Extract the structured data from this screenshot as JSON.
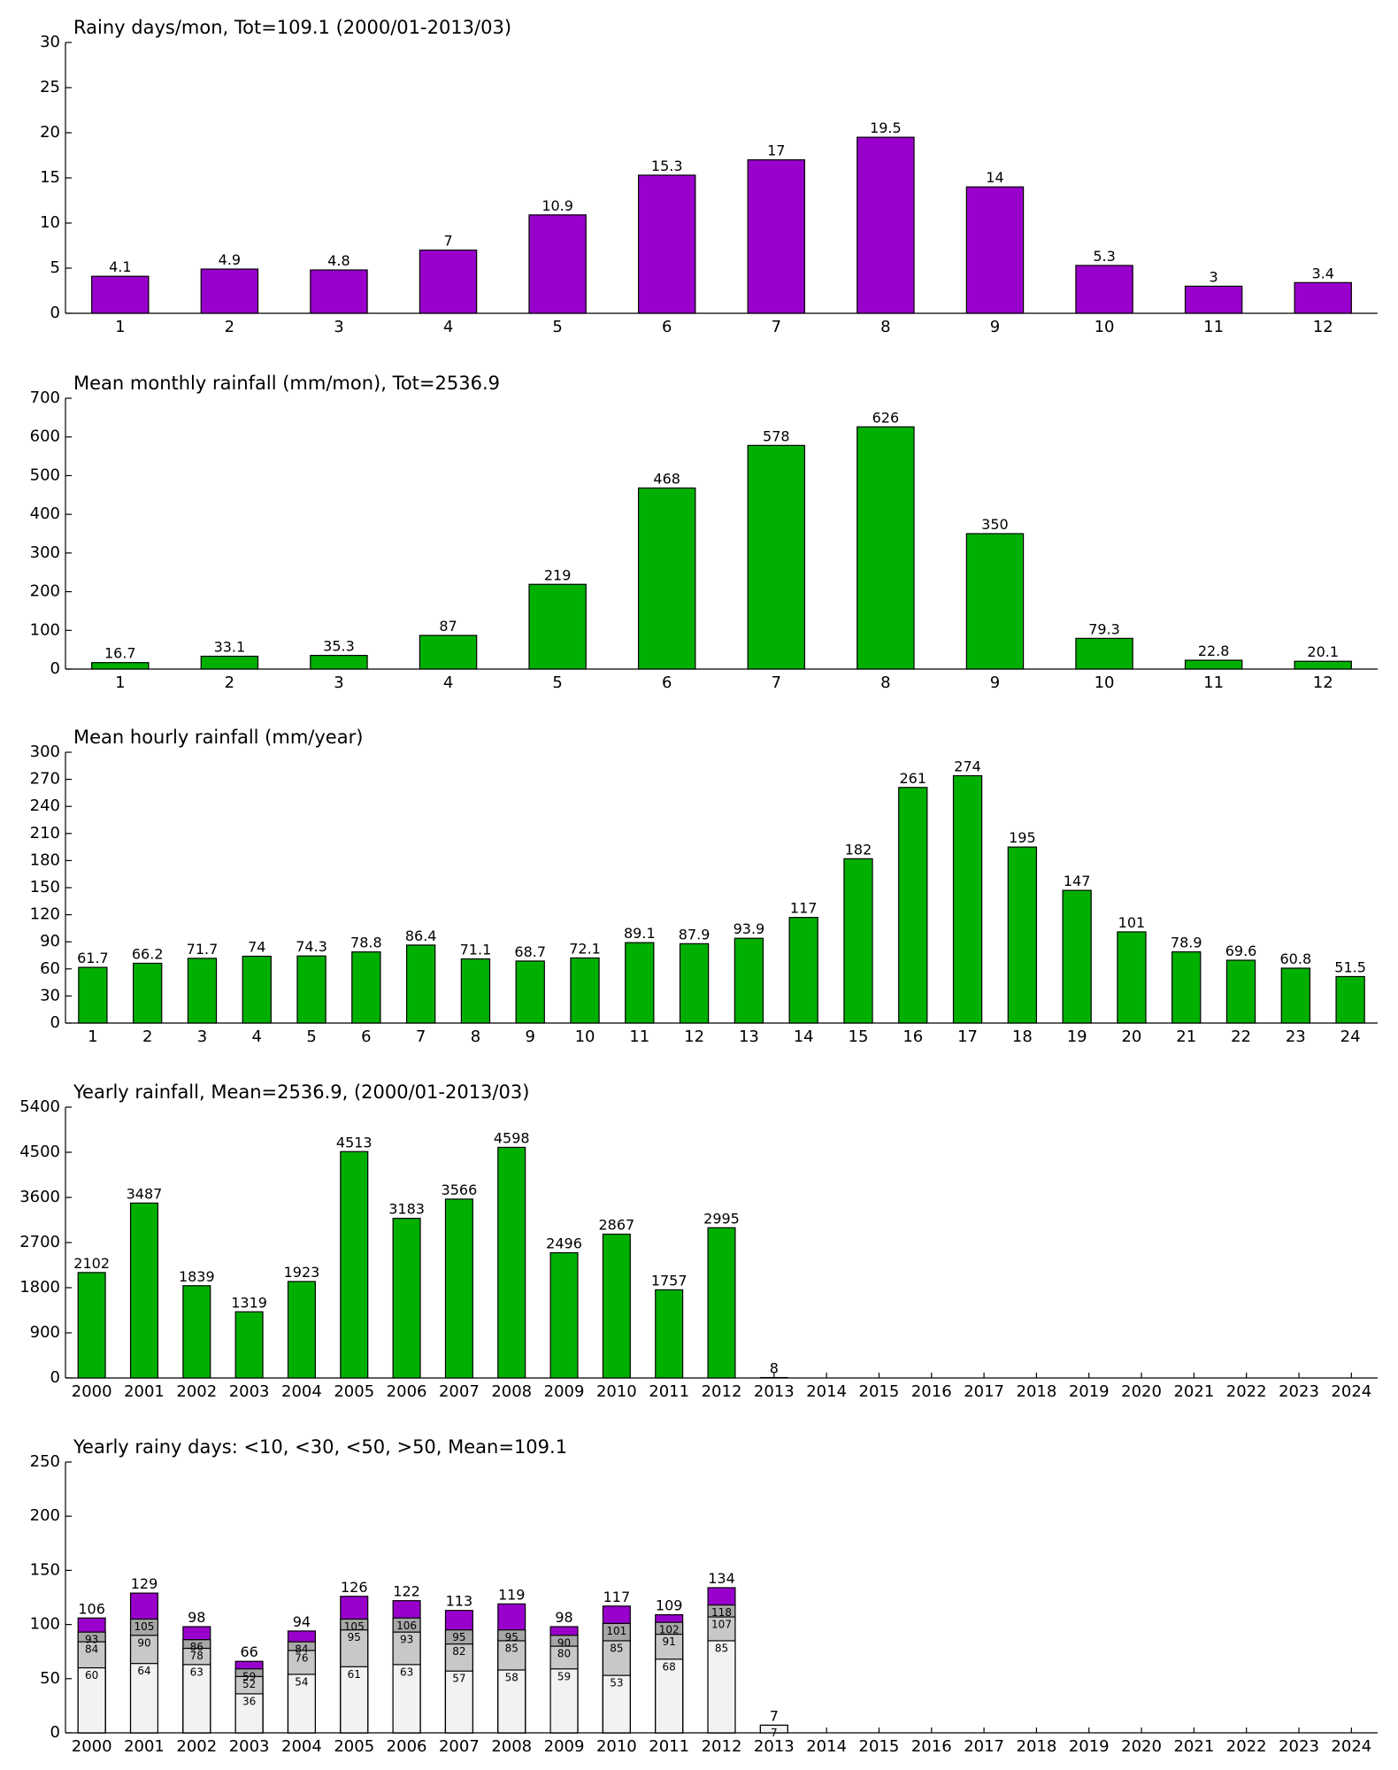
{
  "chart_data": [
    {
      "type": "bar",
      "title": "Rainy days/mon, Tot=109.1 (2000/01-2013/03)",
      "categories": [
        1,
        2,
        3,
        4,
        5,
        6,
        7,
        8,
        9,
        10,
        11,
        12
      ],
      "values": [
        4.1,
        4.9,
        4.8,
        7,
        10.9,
        15.3,
        17,
        19.5,
        14,
        5.3,
        3,
        3.4
      ],
      "color": "#9900cc",
      "ylim": [
        0,
        30
      ],
      "yticks": [
        0,
        5,
        10,
        15,
        20,
        25,
        30
      ]
    },
    {
      "type": "bar",
      "title": "Mean monthly rainfall (mm/mon), Tot=2536.9",
      "categories": [
        1,
        2,
        3,
        4,
        5,
        6,
        7,
        8,
        9,
        10,
        11,
        12
      ],
      "values": [
        16.7,
        33.1,
        35.3,
        87,
        219,
        468,
        578,
        626,
        350,
        79.3,
        22.8,
        20.1
      ],
      "color": "#00b000",
      "ylim": [
        0,
        700
      ],
      "yticks": [
        0,
        100,
        200,
        300,
        400,
        500,
        600,
        700
      ]
    },
    {
      "type": "bar",
      "title": "Mean hourly rainfall (mm/year)",
      "categories": [
        1,
        2,
        3,
        4,
        5,
        6,
        7,
        8,
        9,
        10,
        11,
        12,
        13,
        14,
        15,
        16,
        17,
        18,
        19,
        20,
        21,
        22,
        23,
        24
      ],
      "values": [
        61.7,
        66.2,
        71.7,
        74,
        74.3,
        78.8,
        86.4,
        71.1,
        68.7,
        72.1,
        89.1,
        87.9,
        93.9,
        117,
        182,
        261,
        274,
        195,
        147,
        101,
        78.9,
        69.6,
        60.8,
        51.5
      ],
      "color": "#00b000",
      "ylim": [
        0,
        300
      ],
      "yticks": [
        0,
        30,
        60,
        90,
        120,
        150,
        180,
        210,
        240,
        270,
        300
      ]
    },
    {
      "type": "bar",
      "title": "Yearly rainfall, Mean=2536.9, (2000/01-2013/03)",
      "categories": [
        2000,
        2001,
        2002,
        2003,
        2004,
        2005,
        2006,
        2007,
        2008,
        2009,
        2010,
        2011,
        2012,
        2013,
        2014,
        2015,
        2016,
        2017,
        2018,
        2019,
        2020,
        2021,
        2022,
        2023,
        2024
      ],
      "values": [
        2102,
        3487,
        1839,
        1319,
        1923,
        4513,
        3183,
        3566,
        4598,
        2496,
        2867,
        1757,
        2995,
        8,
        null,
        null,
        null,
        null,
        null,
        null,
        null,
        null,
        null,
        null,
        null
      ],
      "color": "#00b000",
      "ylim": [
        0,
        5400
      ],
      "yticks": [
        0,
        900,
        1800,
        2700,
        3600,
        4500,
        5400
      ]
    },
    {
      "type": "overlap-bar",
      "title": "Yearly rainy days: <10, <30, <50, >50, Mean=109.1",
      "categories": [
        2000,
        2001,
        2002,
        2003,
        2004,
        2005,
        2006,
        2007,
        2008,
        2009,
        2010,
        2011,
        2012,
        2013,
        2014,
        2015,
        2016,
        2017,
        2018,
        2019,
        2020,
        2021,
        2022,
        2023,
        2024
      ],
      "series": [
        {
          "color": "#f2f2f2",
          "values": [
            60,
            64,
            63,
            36,
            54,
            61,
            63,
            57,
            58,
            59,
            53,
            68,
            85,
            7,
            null,
            null,
            null,
            null,
            null,
            null,
            null,
            null,
            null,
            null,
            null
          ]
        },
        {
          "color": "#c8c8c8",
          "values": [
            84,
            90,
            78,
            52,
            76,
            95,
            93,
            82,
            85,
            80,
            85,
            91,
            107,
            null,
            null,
            null,
            null,
            null,
            null,
            null,
            null,
            null,
            null,
            null,
            null
          ]
        },
        {
          "color": "#a6a6a6",
          "values": [
            93,
            105,
            86,
            59,
            84,
            105,
            106,
            95,
            95,
            90,
            101,
            102,
            118,
            null,
            null,
            null,
            null,
            null,
            null,
            null,
            null,
            null,
            null,
            null,
            null
          ]
        },
        {
          "color": "#9900cc",
          "values": [
            106,
            129,
            98,
            66,
            94,
            126,
            122,
            113,
            119,
            98,
            117,
            109,
            134,
            7,
            null,
            null,
            null,
            null,
            null,
            null,
            null,
            null,
            null,
            null,
            null
          ]
        }
      ],
      "ylim": [
        0,
        250
      ],
      "yticks": [
        0,
        50,
        100,
        150,
        200,
        250
      ]
    }
  ]
}
